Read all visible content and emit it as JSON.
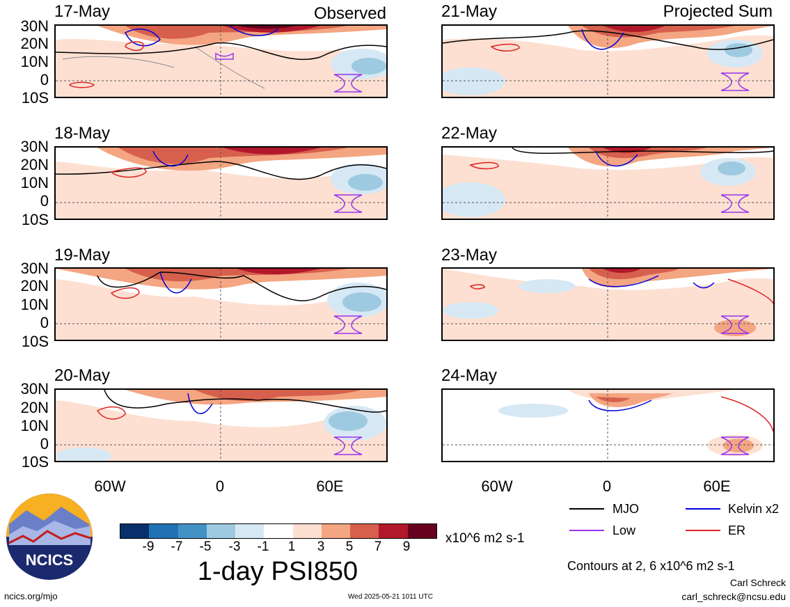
{
  "panels": [
    {
      "date": "17-May",
      "kind": "Observed"
    },
    {
      "date": "18-May",
      "kind": ""
    },
    {
      "date": "19-May",
      "kind": ""
    },
    {
      "date": "20-May",
      "kind": ""
    },
    {
      "date": "21-May",
      "kind": "Projected Sum"
    },
    {
      "date": "22-May",
      "kind": ""
    },
    {
      "date": "23-May",
      "kind": ""
    },
    {
      "date": "24-May",
      "kind": ""
    }
  ],
  "axes": {
    "lat_labels": [
      "30N",
      "20N",
      "10N",
      "0",
      "10S"
    ],
    "lon_labels": [
      "60W",
      "0",
      "60E"
    ]
  },
  "legend": {
    "mjo": "MJO",
    "kelvin": "Kelvin x2",
    "low": "Low",
    "er": "ER",
    "colors": {
      "mjo": "#000000",
      "kelvin": "#0000dd",
      "low": "#9933ee",
      "er": "#dd2222"
    }
  },
  "colorbar": {
    "ticks": [
      "-9",
      "-7",
      "-5",
      "-3",
      "-1",
      "1",
      "3",
      "5",
      "7",
      "9"
    ],
    "colors": [
      "#08306b",
      "#2171b5",
      "#4292c6",
      "#9ecae1",
      "#d6e8f4",
      "#ffffff",
      "#fde0d2",
      "#f4a582",
      "#d6604d",
      "#b2182b",
      "#67001f"
    ],
    "units": "x10^6 m2 s-1"
  },
  "title": "1-day PSI850",
  "contours_note": "Contours at 2, 6 x10^6 m2 s-1",
  "author": "Carl Schreck",
  "email": "carl_schreck@ncsu.edu",
  "url": "ncics.org/mjo",
  "timestamp": "Wed 2025-05-21 1011 UTC",
  "logo_text": "NCICS"
}
